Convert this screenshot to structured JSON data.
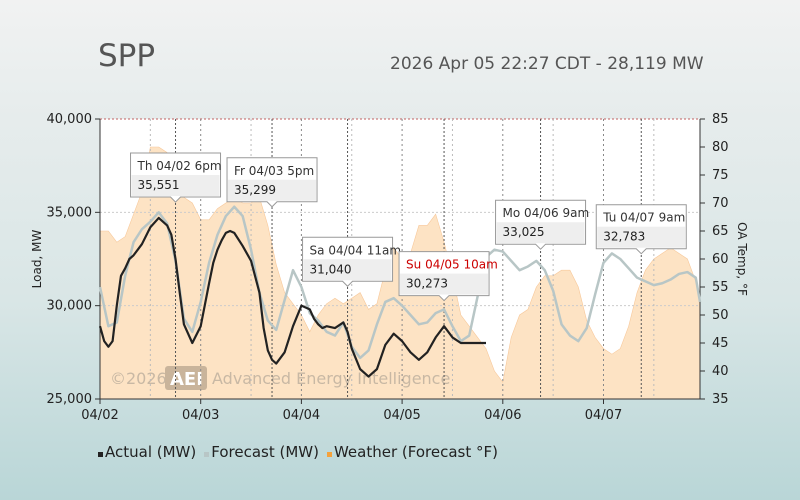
{
  "header": {
    "title": "SPP",
    "subtitle": "2026 Apr 05 22:27 CDT - 28,119 MW"
  },
  "watermark": {
    "prefix": "©2026",
    "badge": "AEI",
    "name": "Advanced Energy Intelligence"
  },
  "colors": {
    "actual": "#222222",
    "forecast": "#b8c6c6",
    "weather": "#fde3c4",
    "weather_stroke": "#f7c89a",
    "legend_weather": "#f5a23c",
    "highlight": "#cc0000"
  },
  "chart_data": {
    "type": "line",
    "xlabel": "",
    "ylabel": "Load, MW",
    "y2label": "OA Temp, °F",
    "x_tick_labels": [
      "04/02",
      "04/03",
      "04/04",
      "04/05",
      "04/06",
      "04/07"
    ],
    "x_tick_hours": [
      0,
      24,
      48,
      72,
      96,
      120
    ],
    "xlim_hours": [
      0,
      143
    ],
    "ylim": [
      25000,
      40000
    ],
    "y_ticks": [
      "25,000",
      "30,000",
      "35,000",
      "40,000"
    ],
    "y_tick_values": [
      25000,
      30000,
      35000,
      40000
    ],
    "y2lim": [
      35,
      85
    ],
    "y2_ticks": [
      "35",
      "40",
      "45",
      "50",
      "55",
      "60",
      "65",
      "70",
      "75",
      "80",
      "85"
    ],
    "y2_tick_values": [
      35,
      40,
      45,
      50,
      55,
      60,
      65,
      70,
      75,
      80,
      85
    ],
    "grid": true,
    "legend_position": "bottom-left",
    "series": [
      {
        "name": "Actual (MW)",
        "x": [
          0,
          1,
          2,
          3,
          4,
          5,
          6,
          7,
          8,
          10,
          12,
          14,
          16,
          17,
          18,
          19,
          20,
          22,
          24,
          26,
          27,
          28,
          29,
          30,
          31,
          32,
          34,
          36,
          38,
          39,
          40,
          41,
          42,
          44,
          46,
          48,
          50,
          51,
          52,
          53,
          54,
          56,
          58,
          59,
          60,
          62,
          64,
          66,
          68,
          70,
          72,
          73,
          74,
          75,
          76,
          78,
          80,
          82,
          84,
          86,
          88,
          90,
          91,
          92
        ],
        "y": [
          28900,
          28100,
          27800,
          28100,
          30000,
          31600,
          32000,
          32500,
          32700,
          33300,
          34200,
          34700,
          34300,
          33800,
          32500,
          30700,
          29000,
          28000,
          28900,
          31200,
          32300,
          33000,
          33500,
          33900,
          34000,
          33900,
          33200,
          32400,
          30700,
          28800,
          27600,
          27100,
          26900,
          27500,
          28900,
          30000,
          29800,
          29300,
          29000,
          28800,
          28900,
          28800,
          29100,
          28600,
          27700,
          26600,
          26200,
          26600,
          27900,
          28500,
          28100,
          27800,
          27500,
          27300,
          27100,
          27500,
          28300,
          28900,
          28300,
          28000,
          28000,
          28000,
          28000,
          28000
        ]
      },
      {
        "name": "Forecast (MW)",
        "x": [
          0,
          2,
          4,
          6,
          8,
          10,
          12,
          14,
          16,
          18,
          20,
          22,
          24,
          26,
          28,
          30,
          32,
          34,
          36,
          38,
          40,
          42,
          44,
          46,
          48,
          50,
          52,
          54,
          56,
          58,
          60,
          62,
          64,
          66,
          68,
          70,
          72,
          74,
          76,
          78,
          80,
          82,
          84,
          86,
          88,
          90,
          92,
          94,
          96,
          98,
          100,
          102,
          104,
          106,
          108,
          110,
          112,
          114,
          116,
          118,
          120,
          122,
          124,
          126,
          128,
          130,
          132,
          134,
          136,
          138,
          140,
          142,
          143
        ],
        "y": [
          31000,
          28900,
          29100,
          31600,
          33400,
          34100,
          34500,
          35000,
          34400,
          32400,
          29300,
          28600,
          30200,
          32300,
          33800,
          34800,
          35300,
          34800,
          33000,
          30700,
          29200,
          28700,
          30300,
          31900,
          31000,
          29600,
          29200,
          28600,
          28400,
          29100,
          27800,
          27200,
          27600,
          29000,
          30200,
          30400,
          30000,
          29500,
          29000,
          29100,
          29600,
          29800,
          28900,
          28100,
          28400,
          30500,
          32600,
          33000,
          32900,
          32400,
          31900,
          32100,
          32400,
          31900,
          30800,
          29000,
          28400,
          28100,
          28800,
          30600,
          32300,
          32800,
          32500,
          32000,
          31500,
          31300,
          31100,
          31200,
          31400,
          31700,
          31800,
          31500,
          30200
        ]
      },
      {
        "name": "Weather (Forecast °F)",
        "axis": "right",
        "x": [
          0,
          2,
          4,
          6,
          8,
          10,
          12,
          14,
          16,
          18,
          20,
          22,
          24,
          26,
          28,
          30,
          32,
          34,
          36,
          38,
          40,
          42,
          44,
          46,
          48,
          50,
          52,
          54,
          56,
          58,
          60,
          62,
          64,
          66,
          68,
          70,
          72,
          74,
          76,
          78,
          80,
          82,
          84,
          86,
          88,
          90,
          92,
          94,
          96,
          98,
          100,
          102,
          104,
          106,
          108,
          110,
          112,
          114,
          116,
          118,
          120,
          122,
          124,
          126,
          128,
          130,
          132,
          134,
          136,
          138,
          140,
          142,
          143
        ],
        "y": [
          65,
          65,
          63,
          64,
          68,
          72,
          80,
          80,
          79,
          74,
          71,
          70,
          67,
          67,
          69,
          70,
          71,
          70,
          70,
          71,
          66,
          59,
          54,
          52,
          50,
          47,
          50,
          52,
          53,
          52,
          53,
          54,
          51,
          52,
          58,
          62,
          60,
          61,
          66,
          66,
          68,
          63,
          57,
          50,
          48,
          46,
          44,
          40,
          38,
          46,
          50,
          51,
          55,
          57,
          57,
          58,
          58,
          55,
          49,
          46,
          44,
          43,
          44,
          48,
          54,
          58,
          60,
          61,
          62,
          61,
          60,
          56,
          52
        ]
      }
    ],
    "annotations": [
      {
        "label": "Th 04/02 6pm",
        "value": "35,551",
        "x_hour": 18,
        "y": 35551,
        "highlight": false
      },
      {
        "label": "Fr 04/03 5pm",
        "value": "35,299",
        "x_hour": 41,
        "y": 35299,
        "highlight": false
      },
      {
        "label": "Sa 04/04 11am",
        "value": "31,040",
        "x_hour": 59,
        "y": 31040,
        "highlight": false
      },
      {
        "label": "Su 04/05 10am",
        "value": "30,273",
        "x_hour": 82,
        "y": 30273,
        "highlight": true
      },
      {
        "label": "Mo 04/06 9am",
        "value": "33,025",
        "x_hour": 105,
        "y": 33025,
        "highlight": false
      },
      {
        "label": "Tu 04/07 9am",
        "value": "32,783",
        "x_hour": 129,
        "y": 32783,
        "highlight": false
      }
    ]
  }
}
